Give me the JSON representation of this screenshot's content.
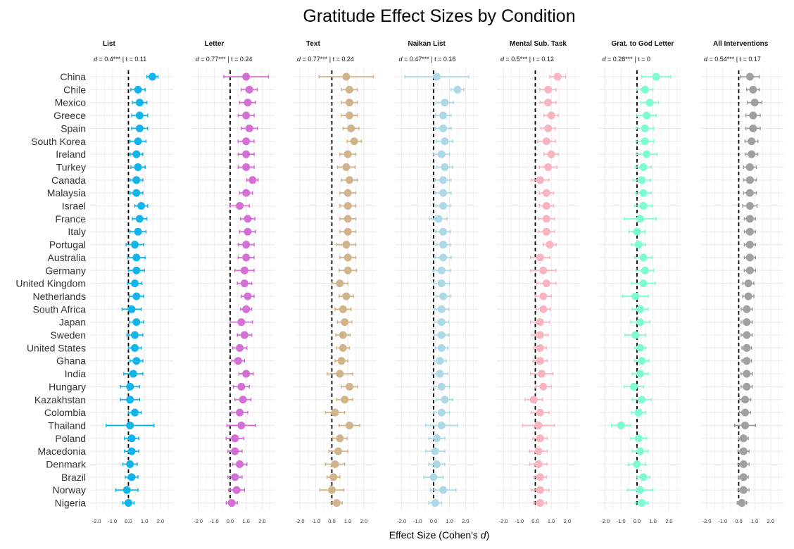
{
  "chart_data": {
    "type": "forest",
    "title": "Gratitude Effect Sizes by Condition",
    "xlabel_prefix": "Effect Size (Cohen's ",
    "xlabel_var": "d",
    "xlabel_suffix": ")",
    "xlim": [
      -2.4,
      2.8
    ],
    "xticks": [
      -2.0,
      -1.0,
      0.0,
      1.0,
      2.0
    ],
    "xtick_labels": [
      "-2.0",
      "-1.0",
      "0.0",
      "1.0",
      "2.0"
    ],
    "reference_line": 0,
    "grid": true,
    "countries": [
      "China",
      "Chile",
      "Mexico",
      "Greece",
      "Spain",
      "South Korea",
      "Ireland",
      "Turkey",
      "Canada",
      "Malaysia",
      "Israel",
      "France",
      "Italy",
      "Portugal",
      "Australia",
      "Germany",
      "United Kingdom",
      "Netherlands",
      "South Africa",
      "Japan",
      "Sweden",
      "United States",
      "Ghana",
      "India",
      "Hungary",
      "Kazakhstan",
      "Colombia",
      "Thailand",
      "Poland",
      "Macedonia",
      "Denmark",
      "Brazil",
      "Norway",
      "Nigeria"
    ],
    "panels": [
      {
        "name": "List",
        "d_text": "0.4",
        "sig": "***",
        "t_text": "0.11",
        "color": "#13b4ea",
        "estimates": [
          1.5,
          0.6,
          0.7,
          0.7,
          0.7,
          0.6,
          0.5,
          0.6,
          0.5,
          0.5,
          0.8,
          0.7,
          0.6,
          0.4,
          0.5,
          0.5,
          0.4,
          0.5,
          0.2,
          0.5,
          0.4,
          0.4,
          0.5,
          0.3,
          0.1,
          0.1,
          0.4,
          0.1,
          0.2,
          0.2,
          0.1,
          0.2,
          -0.1,
          0.0
        ],
        "errors": [
          0.35,
          0.45,
          0.45,
          0.5,
          0.5,
          0.5,
          0.4,
          0.45,
          0.4,
          0.4,
          0.4,
          0.45,
          0.5,
          0.55,
          0.55,
          0.5,
          0.45,
          0.45,
          0.6,
          0.45,
          0.5,
          0.4,
          0.4,
          0.6,
          0.6,
          0.6,
          0.4,
          1.5,
          0.45,
          0.45,
          0.45,
          0.4,
          0.7,
          0.35
        ]
      },
      {
        "name": "Letter",
        "d_text": "0.77",
        "sig": "***",
        "t_text": "0.24",
        "color": "#d46fd5",
        "estimates": [
          1.0,
          1.2,
          1.1,
          1.0,
          1.2,
          1.0,
          1.0,
          1.0,
          1.4,
          1.0,
          0.6,
          1.1,
          1.1,
          1.0,
          1.0,
          0.9,
          0.9,
          1.1,
          1.0,
          0.7,
          0.9,
          0.6,
          0.5,
          1.0,
          0.7,
          0.8,
          0.6,
          0.7,
          0.3,
          0.3,
          0.6,
          0.3,
          0.4,
          0.1
        ],
        "errors": [
          1.4,
          0.5,
          0.5,
          0.5,
          0.5,
          0.5,
          0.5,
          0.5,
          0.35,
          0.4,
          0.6,
          0.45,
          0.5,
          0.5,
          0.5,
          0.6,
          0.45,
          0.4,
          0.35,
          0.7,
          0.45,
          0.45,
          0.4,
          0.45,
          0.5,
          0.5,
          0.5,
          0.9,
          0.55,
          0.45,
          0.45,
          0.45,
          0.5,
          0.35
        ]
      },
      {
        "name": "Text",
        "d_text": "0.77",
        "sig": "***",
        "t_text": "0.24",
        "color": "#d2b48c",
        "estimates": [
          0.9,
          1.1,
          1.1,
          1.1,
          1.2,
          1.4,
          1.0,
          0.9,
          1.1,
          1.0,
          1.0,
          1.0,
          1.0,
          0.9,
          1.0,
          1.0,
          0.5,
          0.9,
          0.7,
          0.8,
          0.7,
          0.7,
          0.6,
          0.5,
          1.1,
          0.8,
          0.2,
          1.1,
          0.5,
          0.4,
          0.2,
          0.1,
          0.0,
          0.3
        ],
        "errors": [
          1.7,
          0.5,
          0.5,
          0.5,
          0.5,
          0.45,
          0.5,
          0.55,
          0.5,
          0.5,
          0.5,
          0.5,
          0.5,
          0.6,
          0.5,
          0.55,
          0.5,
          0.45,
          0.5,
          0.45,
          0.45,
          0.4,
          0.4,
          0.8,
          0.5,
          0.5,
          0.6,
          0.65,
          0.45,
          0.6,
          0.6,
          0.4,
          0.75,
          0.35
        ]
      },
      {
        "name": "Naikan List",
        "d_text": "0.47",
        "sig": "***",
        "t_text": "0.16",
        "color": "#add8e6",
        "estimates": [
          0.2,
          1.5,
          0.7,
          0.6,
          0.6,
          0.7,
          0.5,
          0.7,
          0.6,
          0.6,
          0.6,
          0.3,
          0.6,
          0.6,
          0.6,
          0.5,
          0.5,
          0.6,
          0.5,
          0.5,
          0.5,
          0.5,
          0.4,
          0.4,
          0.5,
          0.7,
          0.5,
          0.5,
          0.2,
          0.1,
          0.2,
          0.0,
          0.6,
          0.1
        ],
        "errors": [
          2.0,
          0.4,
          0.55,
          0.5,
          0.5,
          0.5,
          0.5,
          0.5,
          0.5,
          0.5,
          0.45,
          0.55,
          0.45,
          0.45,
          0.5,
          0.55,
          0.5,
          0.45,
          0.45,
          0.45,
          0.45,
          0.4,
          0.4,
          0.5,
          0.5,
          0.5,
          0.5,
          1.0,
          0.5,
          0.6,
          0.5,
          0.6,
          0.8,
          0.4
        ]
      },
      {
        "name": "Mental Sub. Task",
        "d_text": "0.5",
        "sig": "***",
        "t_text": "0.12",
        "color": "#f8b4c0",
        "estimates": [
          1.4,
          0.8,
          0.8,
          1.0,
          0.8,
          0.7,
          1.0,
          0.8,
          0.3,
          0.7,
          0.7,
          0.7,
          0.7,
          0.9,
          0.3,
          0.5,
          0.7,
          0.5,
          0.5,
          0.3,
          0.3,
          0.3,
          0.3,
          0.4,
          0.5,
          -0.1,
          0.3,
          0.2,
          0.3,
          0.2,
          0.2,
          0.3,
          0.3,
          0.3
        ],
        "errors": [
          0.5,
          0.5,
          0.5,
          0.45,
          0.45,
          0.55,
          0.45,
          0.55,
          0.55,
          0.45,
          0.45,
          0.5,
          0.5,
          0.4,
          0.6,
          0.8,
          0.6,
          0.5,
          0.45,
          0.6,
          0.5,
          0.4,
          0.45,
          0.7,
          0.5,
          0.55,
          0.55,
          1.0,
          0.45,
          0.55,
          0.55,
          0.4,
          0.55,
          0.4
        ]
      },
      {
        "name": "Grat. to God Letter",
        "d_text": "0.28",
        "sig": "***",
        "t_text": "0",
        "color": "#7ffbd3",
        "estimates": [
          1.2,
          0.5,
          0.8,
          0.6,
          0.5,
          0.5,
          0.6,
          0.4,
          0.3,
          0.4,
          0.4,
          0.2,
          0.0,
          0.1,
          0.4,
          0.5,
          0.4,
          -0.1,
          0.2,
          0.2,
          -0.1,
          0.2,
          0.3,
          0.2,
          -0.2,
          0.3,
          0.1,
          -1.0,
          0.1,
          0.2,
          0.0,
          0.4,
          0.2,
          0.3
        ],
        "errors": [
          0.9,
          0.5,
          0.55,
          0.6,
          0.55,
          0.55,
          0.65,
          0.5,
          0.55,
          0.5,
          0.55,
          1.0,
          0.5,
          0.45,
          0.55,
          0.55,
          0.75,
          0.8,
          0.5,
          0.6,
          0.65,
          0.35,
          0.45,
          0.5,
          0.6,
          0.6,
          0.45,
          0.6,
          0.5,
          0.5,
          0.55,
          0.4,
          0.8,
          0.4
        ]
      },
      {
        "name": "All Interventions",
        "d_text": "0.54",
        "sig": "***",
        "t_text": "0.17",
        "color": "#a0a0a0",
        "estimates": [
          0.7,
          0.9,
          1.0,
          0.9,
          0.9,
          0.8,
          0.8,
          0.7,
          0.7,
          0.7,
          0.7,
          0.7,
          0.7,
          0.7,
          0.7,
          0.7,
          0.6,
          0.6,
          0.5,
          0.5,
          0.5,
          0.5,
          0.5,
          0.5,
          0.5,
          0.4,
          0.4,
          0.4,
          0.3,
          0.3,
          0.3,
          0.3,
          0.3,
          0.2
        ],
        "errors": [
          0.6,
          0.4,
          0.45,
          0.45,
          0.45,
          0.4,
          0.4,
          0.4,
          0.4,
          0.4,
          0.45,
          0.35,
          0.35,
          0.35,
          0.35,
          0.35,
          0.35,
          0.35,
          0.35,
          0.35,
          0.35,
          0.3,
          0.3,
          0.35,
          0.35,
          0.35,
          0.35,
          0.65,
          0.3,
          0.35,
          0.35,
          0.3,
          0.35,
          0.3
        ]
      }
    ]
  }
}
